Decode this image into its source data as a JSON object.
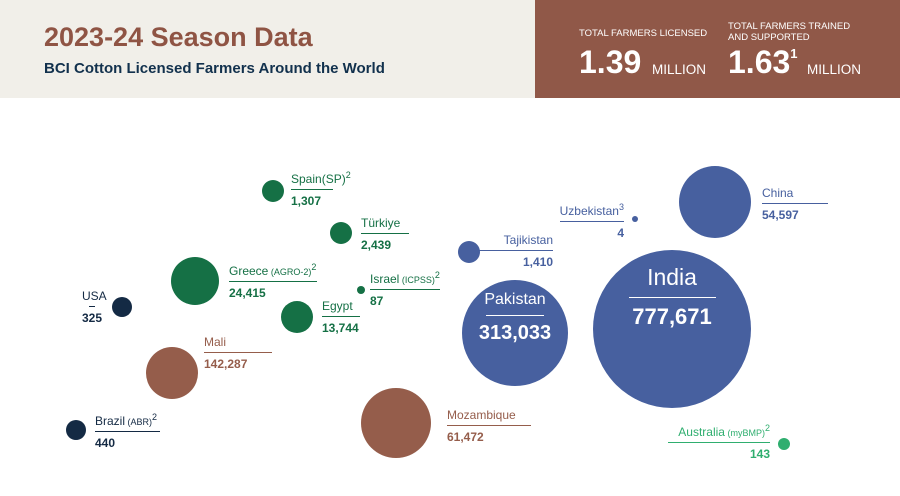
{
  "header": {
    "title": "2023-24 Season Data",
    "subtitle": "BCI Cotton Licensed Farmers Around the World",
    "stat1": {
      "label_line1": "TOTAL FARMERS LICENSED",
      "value": "1.39",
      "unit": "MILLION"
    },
    "stat2": {
      "label_line1": "TOTAL FARMERS TRAINED",
      "label_line2": "AND SUPPORTED",
      "value": "1.63",
      "sup": "1",
      "unit": "MILLION"
    }
  },
  "colors": {
    "green": "#157045",
    "navy": "#142a44",
    "brown": "#955d4b",
    "blue": "#47609f",
    "light_green": "#2fae6f"
  },
  "chart_data": {
    "type": "bubble",
    "title": "BCI Cotton Licensed Farmers Around the World",
    "points": [
      {
        "country": "Spain(SP)",
        "sup": "2",
        "value": 1307,
        "display": "1,307",
        "color": "green"
      },
      {
        "country": "Türkiye",
        "value": 2439,
        "display": "2,439",
        "color": "green"
      },
      {
        "country": "Greece",
        "detail": "(AGRO-2)",
        "sup": "2",
        "value": 24415,
        "display": "24,415",
        "color": "green"
      },
      {
        "country": "Israel",
        "detail": "(ICPSS)",
        "sup": "2",
        "value": 87,
        "display": "87",
        "color": "green"
      },
      {
        "country": "Egypt",
        "value": 13744,
        "display": "13,744",
        "color": "green"
      },
      {
        "country": "USA",
        "value": 325,
        "display": "325",
        "color": "navy"
      },
      {
        "country": "Mali",
        "value": 142287,
        "display": "142,287",
        "color": "brown"
      },
      {
        "country": "Brazil",
        "detail": "(ABR)",
        "sup": "2",
        "value": 440,
        "display": "440",
        "color": "navy"
      },
      {
        "country": "Mozambique",
        "value": 61472,
        "display": "61,472",
        "color": "brown"
      },
      {
        "country": "Tajikistan",
        "value": 1410,
        "display": "1,410",
        "color": "blue"
      },
      {
        "country": "Pakistan",
        "value": 313033,
        "display": "313,033",
        "color": "blue"
      },
      {
        "country": "Uzbekistan",
        "sup": "3",
        "value": 4,
        "display": "4",
        "color": "blue"
      },
      {
        "country": "India",
        "value": 777671,
        "display": "777,671",
        "color": "blue"
      },
      {
        "country": "China",
        "value": 54597,
        "display": "54,597",
        "color": "blue"
      },
      {
        "country": "Australia",
        "detail": "(myBMP)",
        "sup": "2",
        "value": 143,
        "display": "143",
        "color": "light_green"
      }
    ]
  }
}
